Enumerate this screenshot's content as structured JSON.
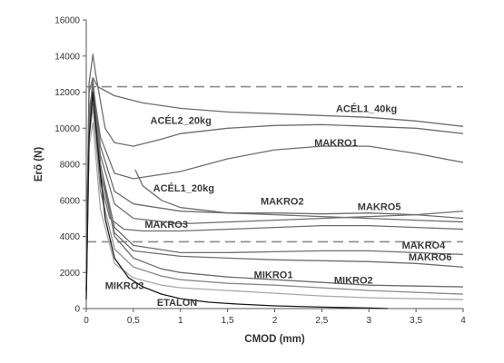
{
  "chart_data": {
    "type": "line",
    "title": "",
    "xlabel": "CMOD (mm)",
    "ylabel": "Erő (N)",
    "xlim": [
      0,
      4
    ],
    "ylim": [
      0,
      16000
    ],
    "x_ticks": [
      0,
      0.5,
      1,
      1.5,
      2,
      2.5,
      3,
      3.5,
      4
    ],
    "x_tick_labels": [
      "0",
      "0,5",
      "1",
      "1,5",
      "2",
      "2,5",
      "3",
      "3,5",
      "4"
    ],
    "y_ticks": [
      0,
      2000,
      4000,
      6000,
      8000,
      10000,
      12000,
      14000,
      16000
    ],
    "y_tick_labels": [
      "0",
      "2000",
      "4000",
      "6000",
      "8000",
      "10000",
      "12000",
      "14000",
      "16000"
    ],
    "grid": false,
    "legend": "none",
    "reference_lines": [
      {
        "y": 12300,
        "style": "dashed",
        "color": "#8a8a8a"
      },
      {
        "y": 3700,
        "style": "dashed",
        "color": "#8a8a8a"
      }
    ],
    "series": [
      {
        "name": "ACÉL1_40kg",
        "color": "#6e6e6e",
        "x": [
          0,
          0.03,
          0.07,
          0.12,
          0.3,
          0.6,
          1.0,
          1.5,
          2.0,
          2.5,
          3.0,
          3.5,
          4.0
        ],
        "y": [
          2500,
          12000,
          12800,
          12300,
          11800,
          11400,
          11100,
          10900,
          10800,
          10700,
          10600,
          10400,
          10100
        ]
      },
      {
        "name": "ACÉL2_20kg",
        "color": "#6e6e6e",
        "x": [
          0,
          0.03,
          0.07,
          0.1,
          0.2,
          0.3,
          0.5,
          0.8,
          1.0,
          1.5,
          2.0,
          2.5,
          3.0,
          3.5,
          4.0
        ],
        "y": [
          2000,
          12500,
          14100,
          13000,
          10000,
          9200,
          9000,
          9400,
          9700,
          10000,
          10150,
          10200,
          10100,
          10000,
          9700
        ]
      },
      {
        "name": "MAKRO1",
        "color": "#6e6e6e",
        "x": [
          0,
          0.03,
          0.07,
          0.15,
          0.3,
          0.5,
          1.0,
          1.5,
          2.0,
          2.5,
          3.0,
          3.5,
          4.0
        ],
        "y": [
          1500,
          11000,
          12300,
          9500,
          7500,
          7200,
          7600,
          8300,
          8800,
          9000,
          9000,
          8600,
          8100
        ]
      },
      {
        "name": "ACÉL1_20kg",
        "color": "#6e6e6e",
        "x": [
          0.52,
          0.6,
          0.8,
          1.0,
          1.5,
          2.0,
          2.5,
          3.0,
          3.5,
          4.0
        ],
        "y": [
          7700,
          6800,
          6000,
          5600,
          5300,
          5200,
          5100,
          5000,
          4900,
          4800
        ]
      },
      {
        "name": "MAKRO2",
        "color": "#6e6e6e",
        "x": [
          0,
          0.03,
          0.07,
          0.15,
          0.3,
          0.5,
          1.0,
          1.5,
          2.0,
          2.5,
          3.0,
          3.5,
          4.0
        ],
        "y": [
          1500,
          10500,
          12500,
          9000,
          6500,
          5800,
          5400,
          5300,
          5300,
          5250,
          5300,
          5200,
          5000
        ]
      },
      {
        "name": "MAKRO5",
        "color": "#6e6e6e",
        "x": [
          0,
          0.03,
          0.07,
          0.15,
          0.3,
          0.5,
          1.0,
          1.5,
          2.0,
          2.5,
          3.0,
          3.5,
          4.0
        ],
        "y": [
          1200,
          10000,
          11800,
          8500,
          5800,
          5000,
          4700,
          4800,
          4900,
          5000,
          5100,
          5200,
          5400
        ]
      },
      {
        "name": "MAKRO3",
        "color": "#6e6e6e",
        "x": [
          0,
          0.03,
          0.07,
          0.15,
          0.25,
          0.4,
          0.6,
          1.0,
          1.5,
          2.0,
          2.5,
          3.0,
          3.5,
          4.0
        ],
        "y": [
          1000,
          9500,
          11500,
          7000,
          5000,
          4400,
          4300,
          4300,
          4400,
          4500,
          4600,
          4600,
          4500,
          4400
        ]
      },
      {
        "name": "MAKRO4",
        "color": "#6e6e6e",
        "x": [
          0,
          0.03,
          0.07,
          0.15,
          0.3,
          0.5,
          1.0,
          1.5,
          2.0,
          2.5,
          3.0,
          3.5,
          4.0
        ],
        "y": [
          1000,
          10500,
          12200,
          8000,
          4500,
          3500,
          3100,
          3100,
          3150,
          3200,
          3200,
          3100,
          3000
        ]
      },
      {
        "name": "MAKRO6",
        "color": "#6e6e6e",
        "x": [
          0,
          0.03,
          0.07,
          0.15,
          0.3,
          0.5,
          1.0,
          1.5,
          2.0,
          2.5,
          3.0,
          3.5,
          4.0
        ],
        "y": [
          1000,
          10000,
          11800,
          7500,
          4200,
          3200,
          2900,
          2800,
          2700,
          2650,
          2600,
          2500,
          2300
        ]
      },
      {
        "name": "MIKRO1",
        "color": "#6e6e6e",
        "x": [
          0,
          0.03,
          0.07,
          0.15,
          0.3,
          0.5,
          0.8,
          1.0,
          1.5,
          2.0,
          2.5,
          3.0,
          3.5,
          4.0
        ],
        "y": [
          1000,
          10500,
          12700,
          8000,
          4000,
          2800,
          2200,
          2000,
          1750,
          1600,
          1450,
          1300,
          1250,
          1200
        ]
      },
      {
        "name": "MIKRO2",
        "color": "#8a8a8a",
        "x": [
          0,
          0.03,
          0.07,
          0.15,
          0.3,
          0.5,
          0.8,
          1.0,
          1.5,
          2.0,
          2.5,
          3.0,
          3.5,
          4.0
        ],
        "y": [
          800,
          9500,
          11200,
          6500,
          3300,
          2300,
          1800,
          1600,
          1400,
          1300,
          1150,
          1000,
          900,
          800
        ]
      },
      {
        "name": "MIKRO3",
        "color": "#a8a8a8",
        "x": [
          0,
          0.03,
          0.07,
          0.15,
          0.3,
          0.5,
          0.8,
          1.0,
          1.5,
          2.0,
          2.5,
          3.0,
          3.5,
          4.0
        ],
        "y": [
          700,
          9000,
          10300,
          5500,
          2500,
          1700,
          1300,
          1150,
          1000,
          850,
          700,
          600,
          550,
          500
        ]
      },
      {
        "name": "ETALON",
        "color": "#1a1a1a",
        "x": [
          0,
          0.03,
          0.07,
          0.12,
          0.2,
          0.3,
          0.45,
          0.6,
          0.8,
          1.0,
          1.3,
          1.6,
          2.0,
          2.5,
          3.0,
          3.2
        ],
        "y": [
          500,
          9500,
          12000,
          9000,
          5000,
          2800,
          1700,
          1200,
          800,
          550,
          350,
          250,
          150,
          80,
          30,
          0
        ]
      }
    ]
  },
  "series_labels": [
    {
      "text": "ACÉL1_40kg",
      "x": 2.65,
      "y": 10900
    },
    {
      "text": "ACÉL2_20kg",
      "x": 0.68,
      "y": 10250
    },
    {
      "text": "MAKRO1",
      "x": 2.42,
      "y": 9000
    },
    {
      "text": "ACÉL1_20kg",
      "x": 0.71,
      "y": 6500
    },
    {
      "text": "MAKRO2",
      "x": 1.85,
      "y": 5760
    },
    {
      "text": "MAKRO5",
      "x": 2.88,
      "y": 5460
    },
    {
      "text": "MAKRO3",
      "x": 0.62,
      "y": 4480
    },
    {
      "text": "MAKRO4",
      "x": 3.35,
      "y": 3320
    },
    {
      "text": "MAKRO6",
      "x": 3.42,
      "y": 2670
    },
    {
      "text": "MIKRO1",
      "x": 1.78,
      "y": 1690
    },
    {
      "text": "MIKRO2",
      "x": 2.63,
      "y": 1380
    },
    {
      "text": "MIKRO3",
      "x": 0.2,
      "y": 1080
    },
    {
      "text": "ETALON",
      "x": 0.75,
      "y": 150
    }
  ]
}
